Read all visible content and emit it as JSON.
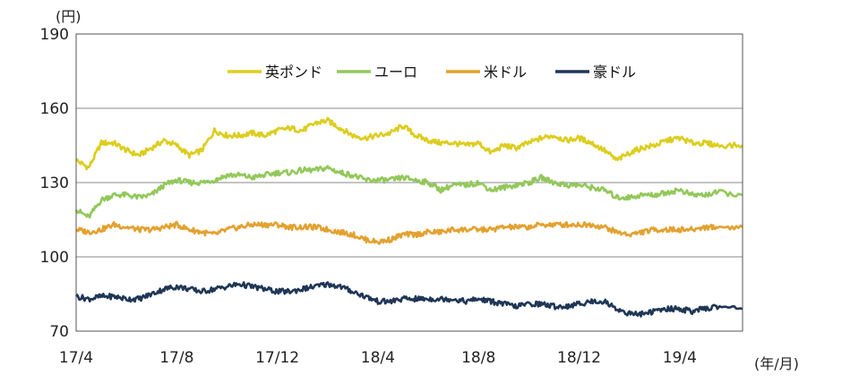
{
  "chart_data": {
    "type": "line",
    "y_unit": "(円)",
    "x_unit": "(年/月)",
    "ylim": [
      70,
      190
    ],
    "yticks": [
      70,
      100,
      130,
      160,
      190
    ],
    "xlim": [
      0,
      26.5
    ],
    "x_ticks": [
      {
        "x": 0,
        "label": "17/4"
      },
      {
        "x": 4,
        "label": "17/8"
      },
      {
        "x": 8,
        "label": "17/12"
      },
      {
        "x": 12,
        "label": "18/4"
      },
      {
        "x": 16,
        "label": "18/8"
      },
      {
        "x": 20,
        "label": "18/12"
      },
      {
        "x": 24,
        "label": "19/4"
      }
    ],
    "grid": "horizontal",
    "legend_position": "top-right",
    "series": [
      {
        "name": "英ポンド",
        "color": "#dccd1e",
        "points": [
          [
            0,
            139
          ],
          [
            0.5,
            136
          ],
          [
            1,
            146
          ],
          [
            1.5,
            146
          ],
          [
            2,
            143
          ],
          [
            2.5,
            141
          ],
          [
            3,
            144
          ],
          [
            3.5,
            147
          ],
          [
            4,
            145
          ],
          [
            4.5,
            141
          ],
          [
            5,
            143
          ],
          [
            5.5,
            151
          ],
          [
            6,
            149
          ],
          [
            6.5,
            149
          ],
          [
            7,
            150
          ],
          [
            7.5,
            149
          ],
          [
            8,
            151
          ],
          [
            8.5,
            152
          ],
          [
            9,
            151
          ],
          [
            9.5,
            154
          ],
          [
            10,
            155
          ],
          [
            10.5,
            152
          ],
          [
            11,
            149
          ],
          [
            11.5,
            148
          ],
          [
            12,
            149
          ],
          [
            12.5,
            150
          ],
          [
            13,
            153
          ],
          [
            13.5,
            149
          ],
          [
            14,
            147
          ],
          [
            14.5,
            146
          ],
          [
            15,
            146
          ],
          [
            15.5,
            145
          ],
          [
            16,
            146
          ],
          [
            16.5,
            142
          ],
          [
            17,
            145
          ],
          [
            17.5,
            144
          ],
          [
            18,
            146
          ],
          [
            18.5,
            148
          ],
          [
            19,
            149
          ],
          [
            19.5,
            147
          ],
          [
            20,
            148
          ],
          [
            20.5,
            146
          ],
          [
            21,
            143
          ],
          [
            21.5,
            139
          ],
          [
            22,
            142
          ],
          [
            22.5,
            144
          ],
          [
            23,
            145
          ],
          [
            23.5,
            147
          ],
          [
            24,
            148
          ],
          [
            24.5,
            146
          ],
          [
            25,
            146
          ],
          [
            25.5,
            145
          ],
          [
            26.5,
            145
          ]
        ]
      },
      {
        "name": "ユーロ",
        "color": "#92c85a",
        "points": [
          [
            0,
            119
          ],
          [
            0.5,
            116
          ],
          [
            1,
            123
          ],
          [
            1.5,
            125
          ],
          [
            2,
            125
          ],
          [
            2.5,
            124
          ],
          [
            3,
            125
          ],
          [
            3.5,
            129
          ],
          [
            4,
            131
          ],
          [
            4.5,
            130
          ],
          [
            5,
            130
          ],
          [
            5.5,
            131
          ],
          [
            6,
            133
          ],
          [
            6.5,
            133
          ],
          [
            7,
            132
          ],
          [
            7.5,
            133
          ],
          [
            8,
            134
          ],
          [
            8.5,
            134
          ],
          [
            9,
            135
          ],
          [
            9.5,
            135
          ],
          [
            10,
            136
          ],
          [
            10.5,
            134
          ],
          [
            11,
            133
          ],
          [
            11.5,
            131
          ],
          [
            12,
            131
          ],
          [
            12.5,
            131
          ],
          [
            13,
            132
          ],
          [
            13.5,
            131
          ],
          [
            14,
            130
          ],
          [
            14.5,
            127
          ],
          [
            15,
            129
          ],
          [
            15.5,
            129
          ],
          [
            16,
            130
          ],
          [
            16.5,
            127
          ],
          [
            17,
            128
          ],
          [
            17.5,
            129
          ],
          [
            18,
            130
          ],
          [
            18.5,
            132
          ],
          [
            19,
            130
          ],
          [
            19.5,
            129
          ],
          [
            20,
            129
          ],
          [
            20.5,
            128
          ],
          [
            21,
            127
          ],
          [
            21.5,
            124
          ],
          [
            22,
            124
          ],
          [
            22.5,
            125
          ],
          [
            23,
            125
          ],
          [
            23.5,
            126
          ],
          [
            24,
            127
          ],
          [
            24.5,
            125
          ],
          [
            25,
            125
          ],
          [
            25.5,
            126
          ],
          [
            26.5,
            125
          ]
        ]
      },
      {
        "name": "米ドル",
        "color": "#e3a12f",
        "points": [
          [
            0,
            111
          ],
          [
            0.5,
            110
          ],
          [
            1,
            111
          ],
          [
            1.5,
            113
          ],
          [
            2,
            112
          ],
          [
            2.5,
            111
          ],
          [
            3,
            111
          ],
          [
            3.5,
            112
          ],
          [
            4,
            113
          ],
          [
            4.5,
            111
          ],
          [
            5,
            110
          ],
          [
            5.5,
            109
          ],
          [
            6,
            111
          ],
          [
            6.5,
            112
          ],
          [
            7,
            113
          ],
          [
            7.5,
            113
          ],
          [
            8,
            113
          ],
          [
            8.5,
            112
          ],
          [
            9,
            112
          ],
          [
            9.5,
            112
          ],
          [
            10,
            111
          ],
          [
            10.5,
            110
          ],
          [
            11,
            109
          ],
          [
            11.5,
            107
          ],
          [
            12,
            106
          ],
          [
            12.5,
            107
          ],
          [
            13,
            109
          ],
          [
            13.5,
            109
          ],
          [
            14,
            110
          ],
          [
            14.5,
            110
          ],
          [
            15,
            111
          ],
          [
            15.5,
            111
          ],
          [
            16,
            111
          ],
          [
            16.5,
            111
          ],
          [
            17,
            112
          ],
          [
            17.5,
            112
          ],
          [
            18,
            112
          ],
          [
            18.5,
            113
          ],
          [
            19,
            113
          ],
          [
            19.5,
            113
          ],
          [
            20,
            113
          ],
          [
            20.5,
            113
          ],
          [
            21,
            112
          ],
          [
            21.5,
            110
          ],
          [
            22,
            109
          ],
          [
            22.5,
            110
          ],
          [
            23,
            111
          ],
          [
            23.5,
            111
          ],
          [
            24,
            111
          ],
          [
            24.5,
            111
          ],
          [
            25,
            112
          ],
          [
            25.5,
            112
          ],
          [
            26.5,
            112
          ]
        ]
      },
      {
        "name": "豪ドル",
        "color": "#1f3656",
        "points": [
          [
            0,
            84
          ],
          [
            0.5,
            83
          ],
          [
            1,
            84
          ],
          [
            1.5,
            84
          ],
          [
            2,
            83
          ],
          [
            2.5,
            83
          ],
          [
            3,
            85
          ],
          [
            3.5,
            87
          ],
          [
            4,
            88
          ],
          [
            4.5,
            87
          ],
          [
            5,
            86
          ],
          [
            5.5,
            87
          ],
          [
            6,
            88
          ],
          [
            6.5,
            89
          ],
          [
            7,
            88
          ],
          [
            7.5,
            87
          ],
          [
            8,
            86
          ],
          [
            8.5,
            86
          ],
          [
            9,
            87
          ],
          [
            9.5,
            88
          ],
          [
            10,
            89
          ],
          [
            10.5,
            88
          ],
          [
            11,
            86
          ],
          [
            11.5,
            84
          ],
          [
            12,
            82
          ],
          [
            12.5,
            82
          ],
          [
            13,
            83
          ],
          [
            13.5,
            83
          ],
          [
            14,
            83
          ],
          [
            14.5,
            83
          ],
          [
            15,
            83
          ],
          [
            15.5,
            82
          ],
          [
            16,
            83
          ],
          [
            16.5,
            82
          ],
          [
            17,
            81
          ],
          [
            17.5,
            80
          ],
          [
            18,
            81
          ],
          [
            18.5,
            81
          ],
          [
            19,
            80
          ],
          [
            19.5,
            80
          ],
          [
            20,
            81
          ],
          [
            20.5,
            82
          ],
          [
            21,
            82
          ],
          [
            21.5,
            79
          ],
          [
            22,
            77
          ],
          [
            22.5,
            77
          ],
          [
            23,
            78
          ],
          [
            23.5,
            79
          ],
          [
            24,
            79
          ],
          [
            24.5,
            78
          ],
          [
            25,
            79
          ],
          [
            25.5,
            80
          ],
          [
            26.5,
            79
          ]
        ]
      }
    ]
  }
}
